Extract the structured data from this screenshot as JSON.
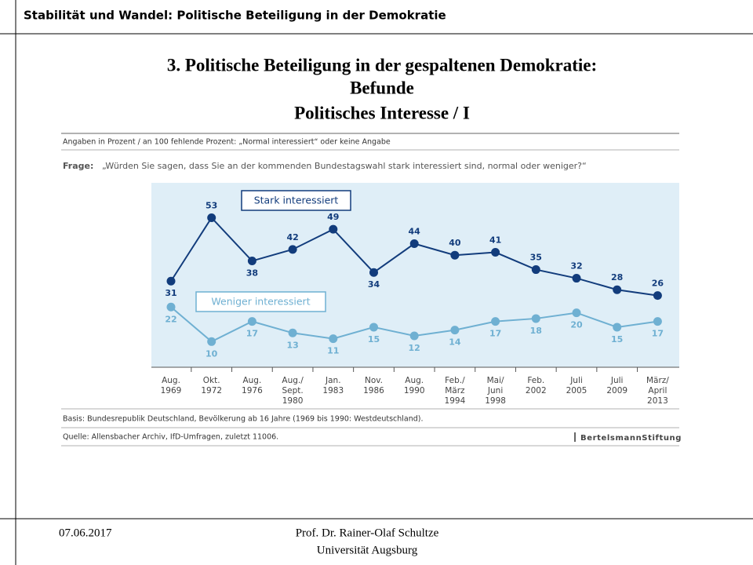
{
  "header": {
    "title": "Stabilität und Wandel: Politische Beteiligung in der Demokratie"
  },
  "slide_title": [
    "3. Politische Beteiligung in der gespaltenen Demokratie:",
    "Befunde",
    "Politisches Interesse / I"
  ],
  "chart_data": {
    "type": "line",
    "note": "Angaben in Prozent / an 100 fehlende Prozent: „Normal interessiert“ oder keine Angabe",
    "question_label": "Frage:",
    "question": "„Würden Sie sagen, dass Sie an der kommenden Bundestagswahl stark interessiert sind, normal oder weniger?“",
    "categories": [
      [
        "Aug.",
        "1969"
      ],
      [
        "Okt.",
        "1972"
      ],
      [
        "Aug.",
        "1976"
      ],
      [
        "Aug./",
        "Sept.",
        "1980"
      ],
      [
        "Jan.",
        "1983"
      ],
      [
        "Nov.",
        "1986"
      ],
      [
        "Aug.",
        "1990"
      ],
      [
        "Feb./",
        "März",
        "1994"
      ],
      [
        "Mai/",
        "Juni",
        "1998"
      ],
      [
        "Feb.",
        "2002"
      ],
      [
        "Juli",
        "2005"
      ],
      [
        "Juli",
        "2009"
      ],
      [
        "März/",
        "April",
        "2013"
      ]
    ],
    "series": [
      {
        "name": "Stark interessiert",
        "color": "#123c7c",
        "values": [
          31,
          53,
          38,
          42,
          49,
          34,
          44,
          40,
          41,
          35,
          32,
          28,
          26
        ]
      },
      {
        "name": "Weniger interessiert",
        "color": "#6fb0d2",
        "values": [
          22,
          10,
          17,
          13,
          11,
          15,
          12,
          14,
          17,
          18,
          20,
          15,
          17
        ]
      }
    ],
    "basis": "Basis: Bundesrepublik Deutschland, Bevölkerung ab 16 Jahre (1969 bis 1990: Westdeutschland).",
    "source": "Quelle: Allensbacher Archiv, IfD-Umfragen, zuletzt 11006.",
    "logo": "BertelsmannStiftung"
  },
  "footer": {
    "date": "07.06.2017",
    "author": "Prof. Dr. Rainer-Olaf Schultze",
    "institution": "Universität Augsburg"
  }
}
